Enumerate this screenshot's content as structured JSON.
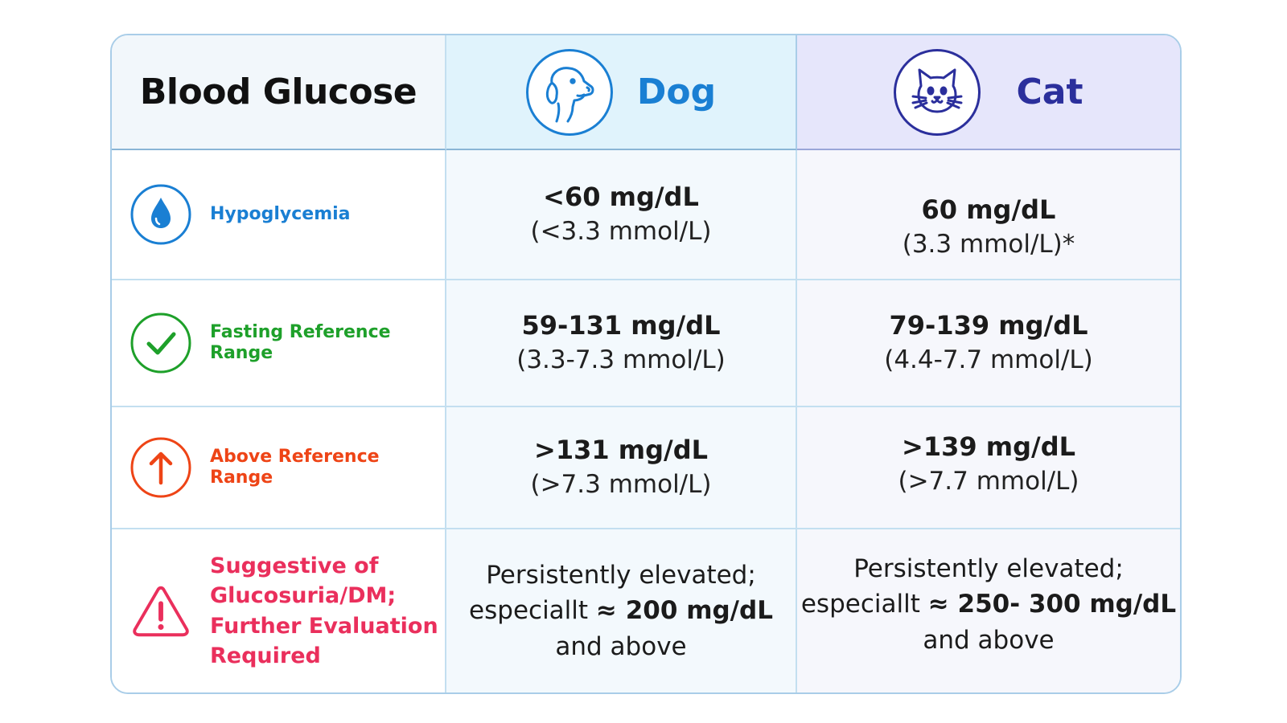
{
  "header": {
    "title": "Blood Glucose",
    "dog_label": "Dog",
    "cat_label": "Cat",
    "dog_icon": "dog-icon",
    "cat_icon": "cat-icon"
  },
  "rows": [
    {
      "label": "Hypoglycemia",
      "icon": "droplet-icon",
      "color": "#1a7fd3",
      "dog_primary": "<60 mg/dL",
      "dog_secondary": "(<3.3 mmol/L)",
      "cat_primary": "60 mg/dL",
      "cat_secondary": "(3.3 mmol/L)*"
    },
    {
      "label": "Fasting Reference Range",
      "icon": "check-circle-icon",
      "color": "#1ea02a",
      "dog_primary": "59-131 mg/dL",
      "dog_secondary": "(3.3-7.3 mmol/L)",
      "cat_primary": "79-139 mg/dL",
      "cat_secondary": "(4.4-7.7 mmol/L)"
    },
    {
      "label": "Above Reference Range",
      "icon": "arrow-up-circle-icon",
      "color": "#ee4416",
      "dog_primary": ">131 mg/dL",
      "dog_secondary": "(>7.3 mmol/L)",
      "cat_primary": ">139 mg/dL",
      "cat_secondary": "(>7.7 mmol/L)"
    },
    {
      "label_lines": [
        "Suggestive of",
        "Glucosuria/DM;",
        "Further Evaluation",
        "Required"
      ],
      "icon": "warning-triangle-icon",
      "color": "#ea2f5c",
      "dog_line1": "Persistently elevated;",
      "dog_line2_prefix": "especiallt ",
      "dog_line2_bold": "≈ 200 mg/dL",
      "dog_line3": "and above",
      "cat_line1": "Persistently elevated;",
      "cat_line2_prefix": "especiallt ",
      "cat_line2_bold": "≈ 250- 300 mg/dL",
      "cat_line3": "and above"
    }
  ]
}
